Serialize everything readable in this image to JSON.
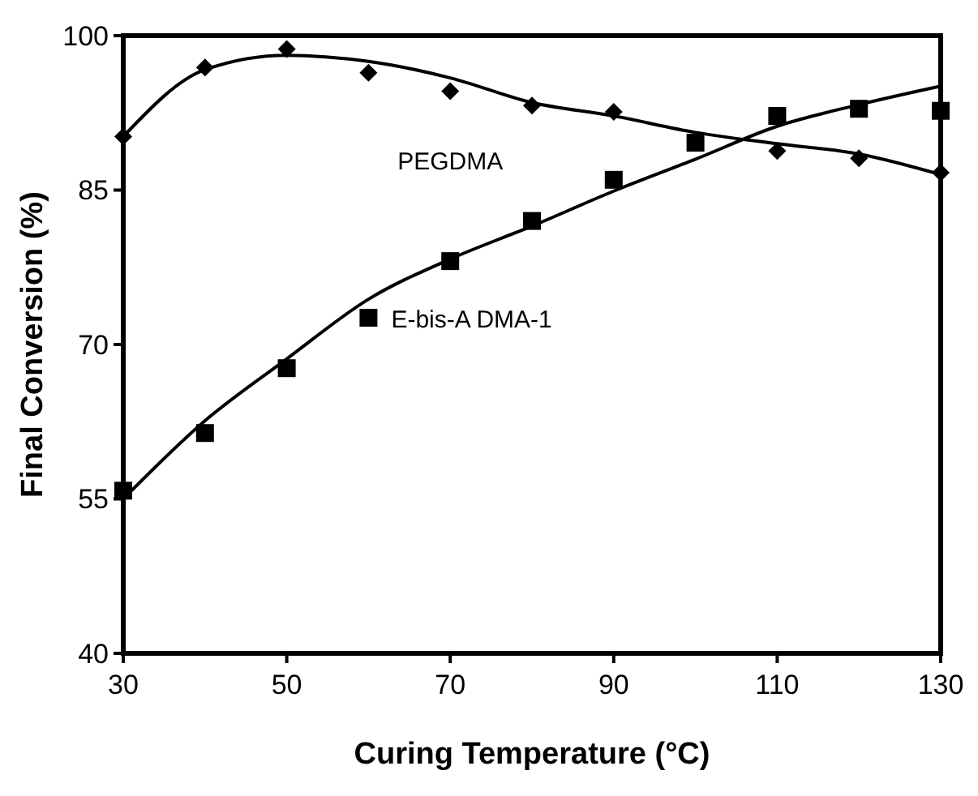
{
  "chart_data": {
    "type": "scatter",
    "xlabel": "Curing Temperature (°C)",
    "ylabel": "Final Conversion (%)",
    "xlim": [
      30,
      130
    ],
    "xticks": [
      30,
      50,
      70,
      90,
      110,
      130
    ],
    "ylim": [
      40,
      100
    ],
    "yticks": [
      40,
      55,
      70,
      85,
      100
    ],
    "grid": false,
    "x": [
      30,
      40,
      50,
      60,
      70,
      80,
      90,
      100,
      110,
      120,
      130
    ],
    "series": [
      {
        "name": "PEGDMA",
        "marker": "diamond",
        "color": "#000000",
        "values": [
          90.2,
          96.9,
          98.7,
          96.4,
          94.6,
          93.2,
          92.6,
          null,
          88.8,
          88.1,
          86.7
        ]
      },
      {
        "name": "E-bis-A DMA-1",
        "marker": "square",
        "color": "#000000",
        "values": [
          55.8,
          61.4,
          67.7,
          72.6,
          78.1,
          82.0,
          86.0,
          89.6,
          92.2,
          92.9,
          92.7
        ]
      },
      {
        "type": "line",
        "line_style": "solid",
        "color": "#000000",
        "values": [
          90.2,
          96.7,
          98.1,
          97.5,
          95.9,
          93.5,
          92.2,
          90.6,
          89.5,
          88.5,
          86.5
        ]
      },
      {
        "type": "line",
        "line_style": "solid",
        "color": "#000000",
        "values": [
          55.0,
          62.6,
          68.6,
          74.4,
          78.3,
          81.5,
          84.9,
          88.0,
          91.2,
          93.3,
          95.1
        ]
      }
    ]
  }
}
